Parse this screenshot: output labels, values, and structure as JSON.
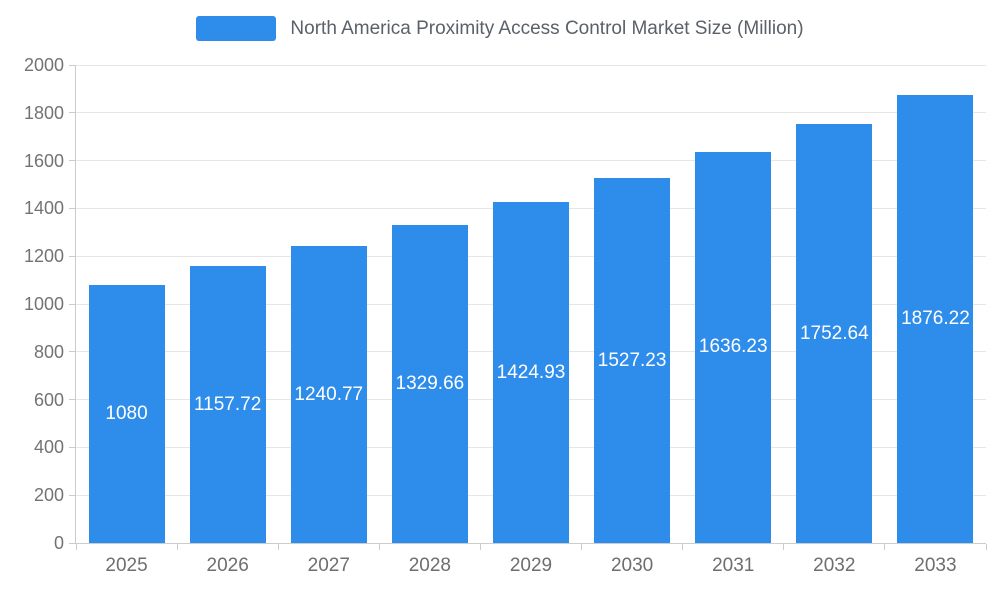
{
  "legend": {
    "label": "North America Proximity Access Control Market Size (Million)"
  },
  "chart_data": {
    "type": "bar",
    "title": "North America Proximity Access Control Market Size (Million)",
    "categories": [
      "2025",
      "2026",
      "2027",
      "2028",
      "2029",
      "2030",
      "2031",
      "2032",
      "2033"
    ],
    "values": [
      1080,
      1157.72,
      1240.77,
      1329.66,
      1424.93,
      1527.23,
      1636.23,
      1752.64,
      1876.22
    ],
    "value_labels": [
      "1080",
      "1157.72",
      "1240.77",
      "1329.66",
      "1424.93",
      "1527.23",
      "1636.23",
      "1752.64",
      "1876.22"
    ],
    "xlabel": "",
    "ylabel": "",
    "ylim": [
      0,
      2000
    ],
    "y_ticks": [
      0,
      200,
      400,
      600,
      800,
      1000,
      1200,
      1400,
      1600,
      1800,
      2000
    ],
    "bar_color": "#2e8deb",
    "value_label_color": "#ffffff",
    "grid": true,
    "legend_position": "top"
  }
}
